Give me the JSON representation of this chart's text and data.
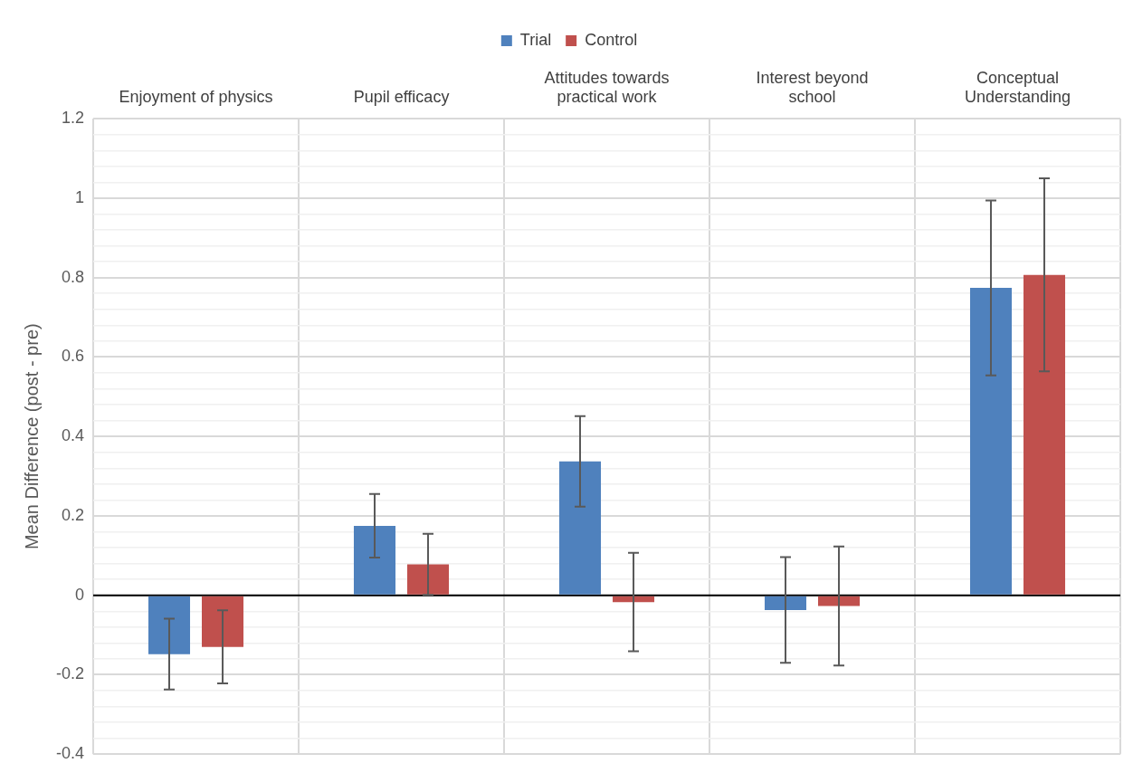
{
  "chart_data": {
    "type": "bar",
    "categories": [
      "Enjoyment of physics",
      "Pupil efficacy",
      "Attitudes towards\npractical work",
      "Interest beyond\nschool",
      "Conceptual\nUnderstanding"
    ],
    "ylabel": "Mean Difference (post - pre)",
    "series": [
      {
        "name": "Trial",
        "color": "#4f81bd",
        "values": [
          -0.148,
          0.175,
          0.337,
          -0.037,
          0.774
        ],
        "errors": [
          0.089,
          0.08,
          0.114,
          0.133,
          0.22
        ]
      },
      {
        "name": "Control",
        "color": "#c0504d",
        "values": [
          -0.13,
          0.078,
          -0.017,
          -0.027,
          0.807
        ],
        "errors": [
          0.092,
          0.077,
          0.124,
          0.15,
          0.243
        ]
      }
    ],
    "ylim": [
      -0.4,
      1.2
    ],
    "yticks": [
      -0.4,
      {
        "value": -0.36,
        "label": null
      },
      {
        "value": -0.32,
        "label": null
      },
      {
        "value": -0.28,
        "label": null
      },
      {
        "value": -0.24,
        "label": null
      },
      -0.2,
      {
        "value": -0.16,
        "label": null
      },
      {
        "value": -0.12,
        "label": null
      },
      {
        "value": -0.08,
        "label": null
      },
      {
        "value": -0.04,
        "label": null
      },
      0,
      {
        "value": 0.04,
        "label": null
      },
      {
        "value": 0.08,
        "label": null
      },
      {
        "value": 0.12,
        "label": null
      },
      {
        "value": 0.16,
        "label": null
      },
      0.2,
      {
        "value": 0.24,
        "label": null
      },
      {
        "value": 0.28,
        "label": null
      },
      {
        "value": 0.32,
        "label": null
      },
      {
        "value": 0.36,
        "label": null
      },
      0.4,
      {
        "value": 0.44,
        "label": null
      },
      {
        "value": 0.48,
        "label": null
      },
      {
        "value": 0.52,
        "label": null
      },
      {
        "value": 0.56,
        "label": null
      },
      0.6,
      {
        "value": 0.64,
        "label": null
      },
      {
        "value": 0.68,
        "label": null
      },
      {
        "value": 0.72,
        "label": null
      },
      {
        "value": 0.76,
        "label": null
      },
      0.8,
      {
        "value": 0.84,
        "label": null
      },
      {
        "value": 0.88,
        "label": null
      },
      {
        "value": 0.92,
        "label": null
      },
      {
        "value": 0.96,
        "label": null
      },
      1,
      {
        "value": 1.04,
        "label": null
      },
      {
        "value": 1.08,
        "label": null
      },
      {
        "value": 1.12,
        "label": null
      },
      {
        "value": 1.16,
        "label": null
      },
      1.2
    ],
    "ref_lines": [
      {
        "axis": "y",
        "value": 0,
        "color": "#000000"
      }
    ],
    "grid": true,
    "legend": "top"
  }
}
